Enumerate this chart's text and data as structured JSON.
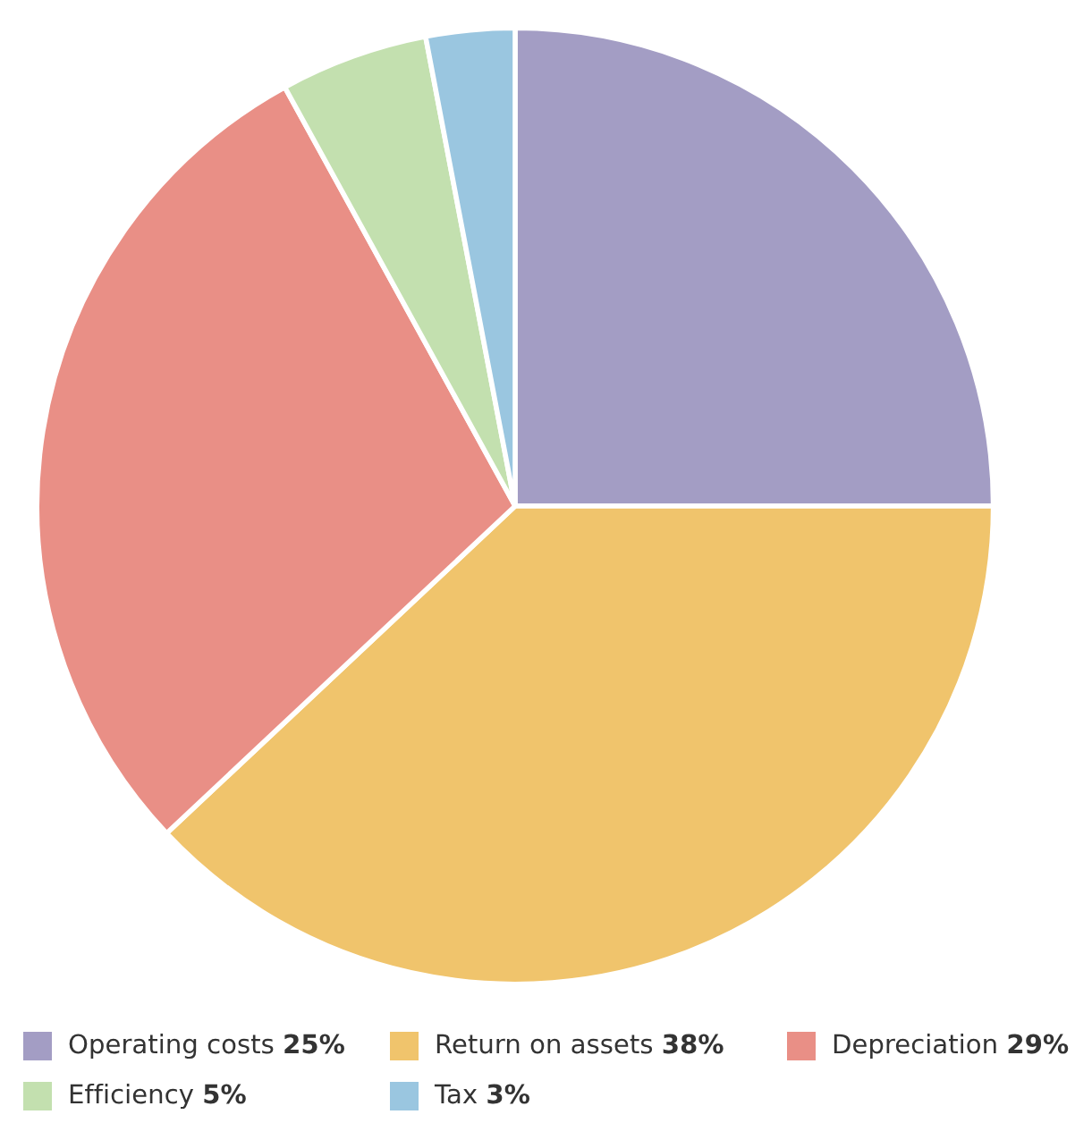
{
  "chart_data": {
    "type": "pie",
    "categories": [
      "Operating costs",
      "Return on assets",
      "Depreciation",
      "Efficiency",
      "Tax"
    ],
    "values": [
      25,
      38,
      29,
      5,
      3
    ],
    "colors": [
      "#a39dc4",
      "#f0c46c",
      "#e98f86",
      "#c3e0af",
      "#9ac6e0"
    ],
    "legend": "bottom",
    "value_labels": [
      "25%",
      "38%",
      "29%",
      "5%",
      "3%"
    ]
  }
}
